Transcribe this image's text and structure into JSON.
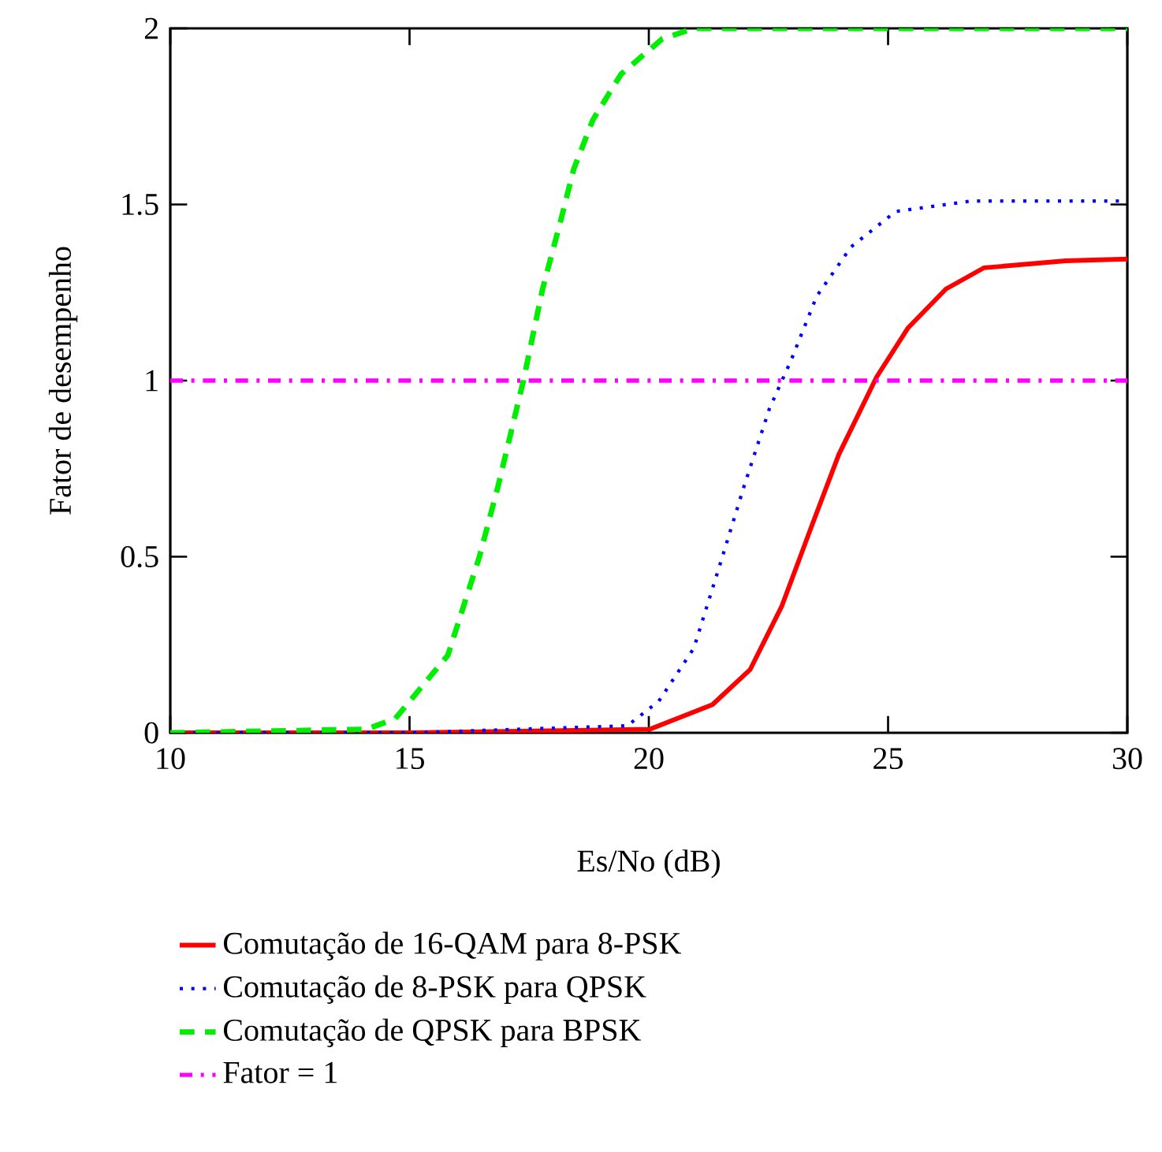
{
  "chart_data": {
    "type": "line",
    "xlabel": "Es/No (dB)",
    "ylabel": "Fator de desempenho",
    "xlim": [
      10,
      30
    ],
    "ylim": [
      0,
      2
    ],
    "xticks": [
      10,
      15,
      20,
      25,
      30
    ],
    "yticks": [
      0,
      0.5,
      1,
      1.5,
      2
    ],
    "grid": false,
    "legend": "bottom",
    "series": [
      {
        "name": "Comutação de 16-QAM para 8-PSK",
        "color": "#ff0000",
        "line_style": "solid",
        "x": [
          10,
          15,
          20.02,
          21.33,
          22.12,
          22.78,
          23.44,
          23.97,
          24.76,
          25.42,
          26.21,
          27.0,
          28.71,
          30
        ],
        "values": [
          0,
          0,
          0.01,
          0.08,
          0.18,
          0.36,
          0.6,
          0.79,
          1.01,
          1.15,
          1.26,
          1.32,
          1.34,
          1.345
        ]
      },
      {
        "name": "Comutação de 8-PSK para QPSK",
        "color": "#0000ff",
        "line_style": "dotted",
        "x": [
          10,
          15,
          19.55,
          20.21,
          20.94,
          21.47,
          21.99,
          22.52,
          22.98,
          23.51,
          24.23,
          25.16,
          26.74,
          30
        ],
        "values": [
          0,
          0,
          0.02,
          0.09,
          0.24,
          0.47,
          0.7,
          0.92,
          1.06,
          1.24,
          1.38,
          1.48,
          1.51,
          1.51
        ]
      },
      {
        "name": "Comutação de QPSK para BPSK",
        "color": "#00ee00",
        "line_style": "dashed",
        "x": [
          10,
          14.1,
          14.7,
          15.8,
          16.46,
          16.85,
          17.38,
          17.78,
          18.17,
          18.43,
          18.83,
          19.42,
          20.28,
          20.94,
          30
        ],
        "values": [
          0,
          0.01,
          0.04,
          0.22,
          0.5,
          0.7,
          1.0,
          1.26,
          1.46,
          1.6,
          1.74,
          1.87,
          1.97,
          2.0,
          2.0
        ]
      }
    ],
    "ref_lines": [
      {
        "axis": "y",
        "value": 1,
        "label": "Fator = 1",
        "color": "#ff00ff",
        "line_style": "dashdot"
      }
    ]
  }
}
